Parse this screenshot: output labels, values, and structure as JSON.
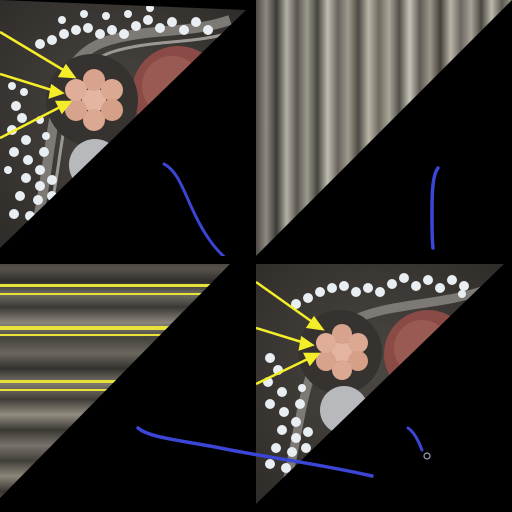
{
  "image": {
    "kind": "four-panel augmented microscopy composite",
    "panels": [
      "cable-cross-section-with-arrows",
      "vertical-stripe-pattern",
      "horizontal-stripe-pattern",
      "cable-cross-section-with-arrows-cropped"
    ]
  },
  "colors": {
    "background": "#000000",
    "arrow": "#f4ee2a",
    "stroke": "#3b45d6",
    "copper": "#d9a58f",
    "ball": "#e8eef2",
    "dark_region": "#3e3a36",
    "red_core": "#8a4a45"
  }
}
